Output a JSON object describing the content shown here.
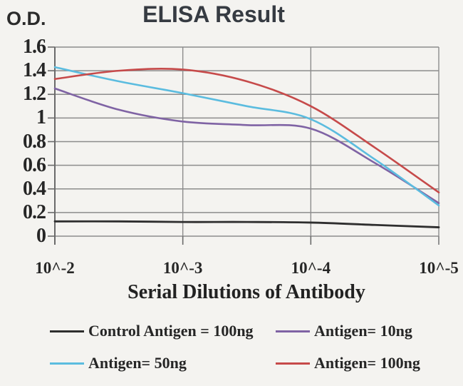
{
  "colors": {
    "background": "#f4f3f0",
    "grid": "#8c8c8c",
    "axis": "#6a6a6a",
    "text": "#262626",
    "title": "#363b42"
  },
  "chart_data": {
    "type": "line",
    "title": "ELISA Result",
    "ylabel": "O.D.",
    "xlabel": "Serial Dilutions of Antibody",
    "ylim": [
      0,
      1.6
    ],
    "grid": true,
    "legend_position": "bottom",
    "yticks": [
      0,
      0.2,
      0.4,
      0.6,
      0.8,
      1,
      1.2,
      1.4,
      1.6
    ],
    "ytick_labels": [
      "0",
      "0.2",
      "0.4",
      "0.6",
      "0.8",
      "1",
      "1.2",
      "1.4",
      "1.6"
    ],
    "xtick_labels": [
      "10^-2",
      "10^-3",
      "10^-4",
      "10^-5"
    ],
    "xtick_positions": [
      0,
      1,
      2,
      3
    ],
    "x_unit": "decade index (0 = 10^-2 ... 3 = 10^-5 serial dilution)",
    "x": [
      0,
      0.5,
      1,
      1.5,
      2,
      2.5,
      3
    ],
    "series": [
      {
        "name": "Control Antigen = 100ng",
        "color": "#2e2e2e",
        "width": 2.8,
        "values": [
          0.125,
          0.125,
          0.12,
          0.12,
          0.115,
          0.095,
          0.075
        ]
      },
      {
        "name": "Antigen= 10ng",
        "color": "#7f63a4",
        "width": 2.6,
        "values": [
          1.25,
          1.07,
          0.97,
          0.94,
          0.91,
          0.62,
          0.28
        ]
      },
      {
        "name": "Antigen= 50ng",
        "color": "#5bbcdf",
        "width": 2.6,
        "values": [
          1.43,
          1.31,
          1.21,
          1.1,
          0.99,
          0.65,
          0.26
        ]
      },
      {
        "name": "Antigen= 100ng",
        "color": "#c64a4a",
        "width": 2.6,
        "values": [
          1.33,
          1.4,
          1.41,
          1.31,
          1.1,
          0.75,
          0.37
        ]
      }
    ]
  }
}
